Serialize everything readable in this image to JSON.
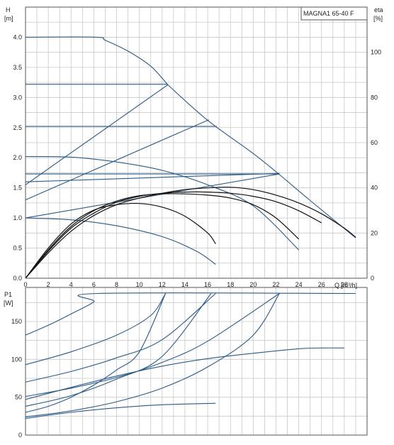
{
  "chart_data": [
    {
      "type": "line",
      "model_label": "MAGNA1 65-40 F",
      "ylabel": "H",
      "yunit": "[m]",
      "xlabel": "Q",
      "xunit": "[m³/h]",
      "y2label": "eta",
      "y2unit": "[%]",
      "xlim": [
        0,
        30
      ],
      "ylim": [
        0,
        4.5
      ],
      "y2lim": [
        0,
        120
      ],
      "x_ticks": [
        "0",
        "2",
        "4",
        "6",
        "8",
        "10",
        "12",
        "14",
        "16",
        "18",
        "20",
        "22",
        "24",
        "26",
        "28"
      ],
      "y_ticks": [
        "0.0",
        "0.5",
        "1.0",
        "1.5",
        "2.0",
        "2.5",
        "3.0",
        "3.5",
        "4.0"
      ],
      "y2_ticks": [
        "0",
        "20",
        "40",
        "60",
        "80",
        "100"
      ],
      "grid": true,
      "series": [
        {
          "color": "#2a5a85",
          "values": [
            [
              0,
              4.0
            ],
            [
              6.2,
              4.0
            ],
            [
              7,
              3.95
            ],
            [
              9,
              3.77
            ],
            [
              11,
              3.52
            ],
            [
              12.5,
              3.21
            ]
          ]
        },
        {
          "color": "#2a5a85",
          "values": [
            [
              12.5,
              3.21
            ],
            [
              16,
              2.62
            ],
            [
              20,
              2.07
            ],
            [
              22.3,
              1.72
            ],
            [
              25,
              1.29
            ],
            [
              29,
              0.67
            ]
          ]
        },
        {
          "color": "#2a5a85",
          "values": [
            [
              0,
              3.22
            ],
            [
              12.5,
              3.22
            ]
          ]
        },
        {
          "color": "#2a5a85",
          "values": [
            [
              0,
              2.52
            ],
            [
              16.8,
              2.52
            ]
          ]
        },
        {
          "color": "#2a5a85",
          "values": [
            [
              0,
              1.73
            ],
            [
              22.3,
              1.73
            ]
          ]
        },
        {
          "color": "#2a5a85",
          "values": [
            [
              0,
              1.3
            ],
            [
              16.1,
              2.63
            ]
          ]
        },
        {
          "color": "#2a5a85",
          "values": [
            [
              0,
              1.0
            ],
            [
              22.3,
              1.73
            ]
          ]
        },
        {
          "color": "#2a5a85",
          "values": [
            [
              0,
              1.55
            ],
            [
              12.5,
              3.21
            ]
          ]
        },
        {
          "color": "#2a5a85",
          "values": [
            [
              0,
              1.6
            ],
            [
              22.3,
              1.74
            ]
          ]
        },
        {
          "color": "#2a5a85",
          "values": [
            [
              0,
              2.02
            ],
            [
              4,
              2.01
            ],
            [
              8,
              1.93
            ],
            [
              12,
              1.79
            ],
            [
              16,
              1.55
            ],
            [
              20,
              1.2
            ],
            [
              24,
              0.47
            ]
          ]
        },
        {
          "color": "#2a5a85",
          "values": [
            [
              0,
              1.0
            ],
            [
              4,
              0.97
            ],
            [
              8,
              0.87
            ],
            [
              12,
              0.69
            ],
            [
              15,
              0.45
            ],
            [
              16.7,
              0.23
            ]
          ]
        },
        {
          "color": "#111111",
          "values": [
            [
              0,
              0
            ],
            [
              2,
              0.42
            ],
            [
              4,
              0.78
            ],
            [
              6,
              1.04
            ],
            [
              8,
              1.22
            ],
            [
              10,
              1.33
            ],
            [
              12,
              1.41
            ],
            [
              14,
              1.47
            ],
            [
              16,
              1.5
            ],
            [
              18,
              1.51
            ],
            [
              20,
              1.47
            ],
            [
              22,
              1.38
            ],
            [
              24,
              1.25
            ],
            [
              26,
              1.07
            ],
            [
              28,
              0.83
            ],
            [
              29,
              0.68
            ]
          ]
        },
        {
          "color": "#111111",
          "values": [
            [
              0,
              0
            ],
            [
              2,
              0.45
            ],
            [
              4,
              0.83
            ],
            [
              6,
              1.08
            ],
            [
              8,
              1.26
            ],
            [
              10,
              1.36
            ],
            [
              12,
              1.41
            ],
            [
              14,
              1.43
            ],
            [
              16,
              1.43
            ],
            [
              18,
              1.41
            ],
            [
              20,
              1.36
            ],
            [
              22,
              1.27
            ],
            [
              24,
              1.12
            ],
            [
              26,
              0.92
            ]
          ]
        },
        {
          "color": "#111111",
          "values": [
            [
              0,
              0
            ],
            [
              2,
              0.47
            ],
            [
              4,
              0.86
            ],
            [
              6,
              1.12
            ],
            [
              8,
              1.28
            ],
            [
              10,
              1.37
            ],
            [
              12,
              1.4
            ],
            [
              14,
              1.4
            ],
            [
              16,
              1.38
            ],
            [
              18,
              1.33
            ],
            [
              20,
              1.22
            ],
            [
              22,
              1.0
            ],
            [
              24,
              0.65
            ]
          ]
        },
        {
          "color": "#111111",
          "values": [
            [
              0,
              0
            ],
            [
              2,
              0.5
            ],
            [
              4,
              0.9
            ],
            [
              6,
              1.13
            ],
            [
              8,
              1.22
            ],
            [
              10,
              1.24
            ],
            [
              12,
              1.18
            ],
            [
              14,
              1.03
            ],
            [
              16,
              0.75
            ],
            [
              16.7,
              0.57
            ]
          ]
        }
      ]
    },
    {
      "type": "line",
      "ylabel": "P1",
      "yunit": "[W]",
      "xlim": [
        0,
        30
      ],
      "ylim": [
        0,
        195
      ],
      "y_ticks": [
        "0",
        "50",
        "100",
        "150"
      ],
      "grid": true,
      "series": [
        {
          "color": "#2a5a85",
          "values": [
            [
              0,
              132
            ],
            [
              2,
              145
            ],
            [
              4,
              160
            ],
            [
              6,
              176
            ],
            [
              6.3,
              187
            ],
            [
              29,
              187
            ]
          ]
        },
        {
          "color": "#2a5a85",
          "values": [
            [
              0,
              93
            ],
            [
              4,
              110
            ],
            [
              8,
              132
            ],
            [
              11,
              158
            ],
            [
              12.3,
              187
            ]
          ]
        },
        {
          "color": "#2a5a85",
          "values": [
            [
              0,
              70
            ],
            [
              4,
              84
            ],
            [
              8,
              102
            ],
            [
              12,
              126
            ],
            [
              16.7,
              187
            ]
          ]
        },
        {
          "color": "#2a5a85",
          "values": [
            [
              0,
              51
            ],
            [
              4,
              62
            ],
            [
              8,
              76
            ],
            [
              12,
              96
            ],
            [
              16,
              124
            ],
            [
              22.3,
              187
            ]
          ]
        },
        {
          "color": "#2a5a85",
          "values": [
            [
              0,
              30
            ],
            [
              2,
              38
            ],
            [
              4,
              50
            ],
            [
              6,
              66
            ],
            [
              8,
              86
            ],
            [
              10,
              110
            ],
            [
              12.3,
              187
            ]
          ]
        },
        {
          "color": "#2a5a85",
          "values": [
            [
              0,
              38
            ],
            [
              4,
              52
            ],
            [
              8,
              74
            ],
            [
              12,
              104
            ],
            [
              16.3,
              187
            ]
          ]
        },
        {
          "color": "#2a5a85",
          "values": [
            [
              0,
              24
            ],
            [
              4,
              32
            ],
            [
              8,
              44
            ],
            [
              12,
              62
            ],
            [
              16,
              90
            ],
            [
              20,
              132
            ],
            [
              22.3,
              187
            ]
          ]
        },
        {
          "color": "#2a5a85",
          "values": [
            [
              0,
              47
            ],
            [
              4,
              63
            ],
            [
              8,
              78
            ],
            [
              12,
              91
            ],
            [
              16,
              101
            ],
            [
              20,
              108
            ],
            [
              24,
              114
            ],
            [
              26,
              115
            ],
            [
              28,
              115
            ]
          ]
        },
        {
          "color": "#2a5a85",
          "values": [
            [
              0,
              22
            ],
            [
              4,
              30
            ],
            [
              8,
              36
            ],
            [
              12,
              40
            ],
            [
              16.7,
              42
            ]
          ]
        }
      ]
    }
  ]
}
